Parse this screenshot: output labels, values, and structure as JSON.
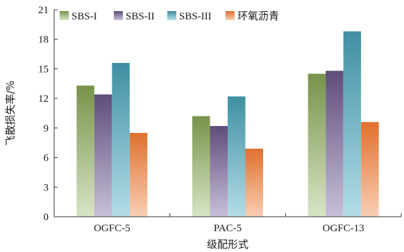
{
  "chart_data": {
    "type": "bar",
    "categories": [
      "OGFC-5",
      "PAC-5",
      "OGFC-13"
    ],
    "series": [
      {
        "name": "SBS-I",
        "values": [
          13.3,
          10.2,
          14.5
        ],
        "color_top": "#77934a",
        "color_bottom": "#d8e5c6"
      },
      {
        "name": "SBS-II",
        "values": [
          12.4,
          9.2,
          14.8
        ],
        "color_top": "#5e4d7a",
        "color_bottom": "#c9bfd9"
      },
      {
        "name": "SBS-III",
        "values": [
          15.6,
          12.2,
          18.8
        ],
        "color_top": "#3f8fa3",
        "color_bottom": "#b4dde8"
      },
      {
        "name": "环氧沥青",
        "values": [
          8.5,
          6.9,
          9.6
        ],
        "color_top": "#e0702e",
        "color_bottom": "#f8cfb4"
      }
    ],
    "xlabel": "级配形式",
    "ylabel": "飞散损失率/%",
    "ylim": [
      0,
      21
    ],
    "yticks": [
      0,
      3,
      6,
      9,
      12,
      15,
      18,
      21
    ],
    "grid": false,
    "legend_position": "top"
  }
}
